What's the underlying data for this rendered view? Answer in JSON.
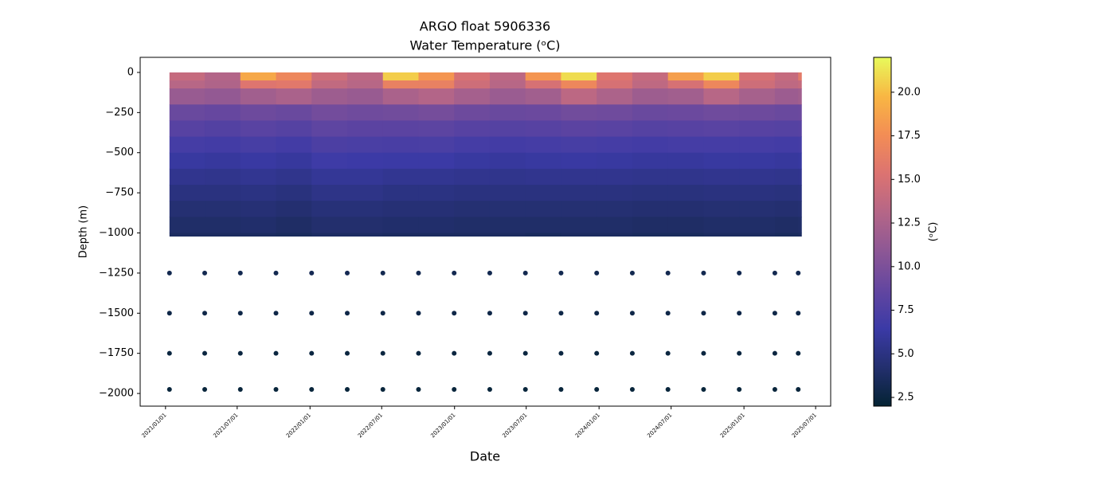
{
  "chart_data": {
    "type": "scatter",
    "title": "ARGO float 5906336",
    "subtitle": "Water Temperature (ᵒC)",
    "xlabel": "Date",
    "ylabel": "Depth (m)",
    "colorbar_label": "(ᵒC)",
    "x": [
      "2021-01-11",
      "2021-04-10",
      "2021-07-09",
      "2021-10-07",
      "2022-01-05",
      "2022-04-05",
      "2022-07-04",
      "2022-10-02",
      "2022-12-31",
      "2023-03-31",
      "2023-06-29",
      "2023-09-27",
      "2023-12-26",
      "2024-03-25",
      "2024-06-23",
      "2024-09-21",
      "2024-12-20",
      "2025-03-20",
      "2025-05-18"
    ],
    "y": [
      0,
      -50,
      -100,
      -200,
      -300,
      -400,
      -500,
      -600,
      -700,
      -800,
      -900,
      -1000,
      -1250,
      -1500,
      -1750,
      -1975
    ],
    "values": [
      [
        14,
        13,
        19,
        17,
        14.5,
        13.5,
        20.5,
        18,
        15,
        13.5,
        18,
        21,
        15.5,
        14,
        18.5,
        20.5,
        15,
        14,
        16
      ],
      [
        13.2,
        12.8,
        15.5,
        15.8,
        13.8,
        13.2,
        16.5,
        16.5,
        14.5,
        13.2,
        15,
        17,
        15,
        13.6,
        15,
        17,
        14.5,
        13.6,
        14
      ],
      [
        11.5,
        11.2,
        12,
        12.5,
        11.8,
        11.5,
        12.5,
        13,
        12.2,
        11.6,
        12,
        13.5,
        12.6,
        11.8,
        12,
        13.2,
        12.3,
        11.7,
        12
      ],
      [
        9,
        8.8,
        9.2,
        9,
        9.5,
        9.3,
        9.4,
        9.6,
        9.2,
        9,
        9.1,
        9.4,
        9.3,
        9,
        9.1,
        9.3,
        9.2,
        9,
        9.1
      ],
      [
        8,
        7.8,
        8.1,
        7.9,
        8.4,
        8.2,
        8.2,
        8.3,
        8,
        7.9,
        8,
        8.2,
        8.1,
        7.9,
        8,
        8.1,
        8,
        7.9,
        8
      ],
      [
        7,
        6.9,
        7.1,
        6.9,
        7.4,
        7.3,
        7.2,
        7.3,
        7,
        6.9,
        7,
        7.1,
        7,
        6.9,
        7,
        7,
        7,
        6.9,
        7
      ],
      [
        6.2,
        6.1,
        6.3,
        6.1,
        6.6,
        6.5,
        6.4,
        6.4,
        6.2,
        6.1,
        6.2,
        6.3,
        6.2,
        6.1,
        6.1,
        6.2,
        6.2,
        6.1,
        6.2
      ],
      [
        5.5,
        5.4,
        5.6,
        5.4,
        5.8,
        5.8,
        5.6,
        5.6,
        5.5,
        5.4,
        5.5,
        5.5,
        5.5,
        5.4,
        5.4,
        5.5,
        5.5,
        5.4,
        5.5
      ],
      [
        4.9,
        4.9,
        5,
        4.8,
        5.2,
        5.2,
        5,
        5,
        4.9,
        4.9,
        4.9,
        4.9,
        4.9,
        4.8,
        4.8,
        4.9,
        4.9,
        4.8,
        4.9
      ],
      [
        4.4,
        4.4,
        4.5,
        4.3,
        4.6,
        4.6,
        4.5,
        4.5,
        4.4,
        4.4,
        4.4,
        4.4,
        4.4,
        4.3,
        4.3,
        4.4,
        4.4,
        4.3,
        4.4
      ],
      [
        4,
        4,
        4.1,
        3.9,
        4.2,
        4.2,
        4.1,
        4.1,
        4,
        4,
        4,
        4,
        4,
        3.9,
        3.9,
        4,
        4,
        3.9,
        4
      ],
      [
        3.7,
        3.7,
        3.7,
        3.6,
        3.8,
        3.8,
        3.7,
        3.7,
        3.7,
        3.7,
        3.6,
        3.7,
        3.7,
        3.6,
        3.6,
        3.7,
        3.7,
        3.6,
        3.7
      ],
      [
        3.1,
        3.1,
        3.1,
        3.1,
        3.2,
        3.2,
        3.1,
        3.1,
        3.1,
        3.1,
        3.1,
        3.1,
        3.1,
        3.1,
        3.1,
        3.1,
        3.1,
        3.1,
        3.1
      ],
      [
        2.8,
        2.8,
        2.8,
        2.8,
        2.8,
        2.8,
        2.8,
        2.8,
        2.8,
        2.8,
        2.8,
        2.8,
        2.8,
        2.8,
        2.8,
        2.8,
        2.8,
        2.8,
        2.8
      ],
      [
        2.5,
        2.5,
        2.5,
        2.5,
        2.5,
        2.5,
        2.5,
        2.5,
        2.5,
        2.5,
        2.5,
        2.5,
        2.5,
        2.5,
        2.5,
        2.5,
        2.5,
        2.5,
        2.5
      ],
      [
        2.3,
        2.3,
        2.3,
        2.3,
        2.3,
        2.3,
        2.3,
        2.3,
        2.3,
        2.3,
        2.3,
        2.3,
        2.3,
        2.3,
        2.3,
        2.3,
        2.3,
        2.3,
        2.3
      ]
    ],
    "xlim": [
      "2020-10-29",
      "2025-08-08"
    ],
    "xticks": [
      {
        "value": "2021-01-01",
        "label": "2021/01/01"
      },
      {
        "value": "2021-07-01",
        "label": "2021/07/01"
      },
      {
        "value": "2022-01-01",
        "label": "2022/01/01"
      },
      {
        "value": "2022-07-01",
        "label": "2022/07/01"
      },
      {
        "value": "2023-01-01",
        "label": "2023/01/01"
      },
      {
        "value": "2023-07-01",
        "label": "2023/07/01"
      },
      {
        "value": "2024-01-01",
        "label": "2024/01/01"
      },
      {
        "value": "2024-07-01",
        "label": "2024/07/01"
      },
      {
        "value": "2025-01-01",
        "label": "2025/01/01"
      },
      {
        "value": "2025-07-01",
        "label": "2025/07/01"
      }
    ],
    "ylim": [
      -2079,
      94
    ],
    "yticks": [
      0,
      {
        "value": -250,
        "label": "−250"
      },
      {
        "value": -500,
        "label": "−500"
      },
      {
        "value": -750,
        "label": "−750"
      },
      {
        "value": -1000,
        "label": "−1000"
      },
      {
        "value": -1250,
        "label": "−1250"
      },
      {
        "value": -1500,
        "label": "−1500"
      },
      {
        "value": -1750,
        "label": "−1750"
      },
      {
        "value": -2000,
        "label": "−2000"
      }
    ],
    "clim": [
      2,
      22
    ],
    "cticks": [
      2.5,
      {
        "value": 5,
        "label": "5.0"
      },
      7.5,
      {
        "value": 10,
        "label": "10.0"
      },
      12.5,
      {
        "value": 15,
        "label": "15.0"
      },
      17.5,
      {
        "value": 20,
        "label": "20.0"
      }
    ],
    "colormap": [
      "#042333",
      "#232f6e",
      "#3b3aa6",
      "#6346a0",
      "#8d5795",
      "#b56687",
      "#dc7371",
      "#f38d55",
      "#f8b743",
      "#e8fa5b"
    ]
  }
}
